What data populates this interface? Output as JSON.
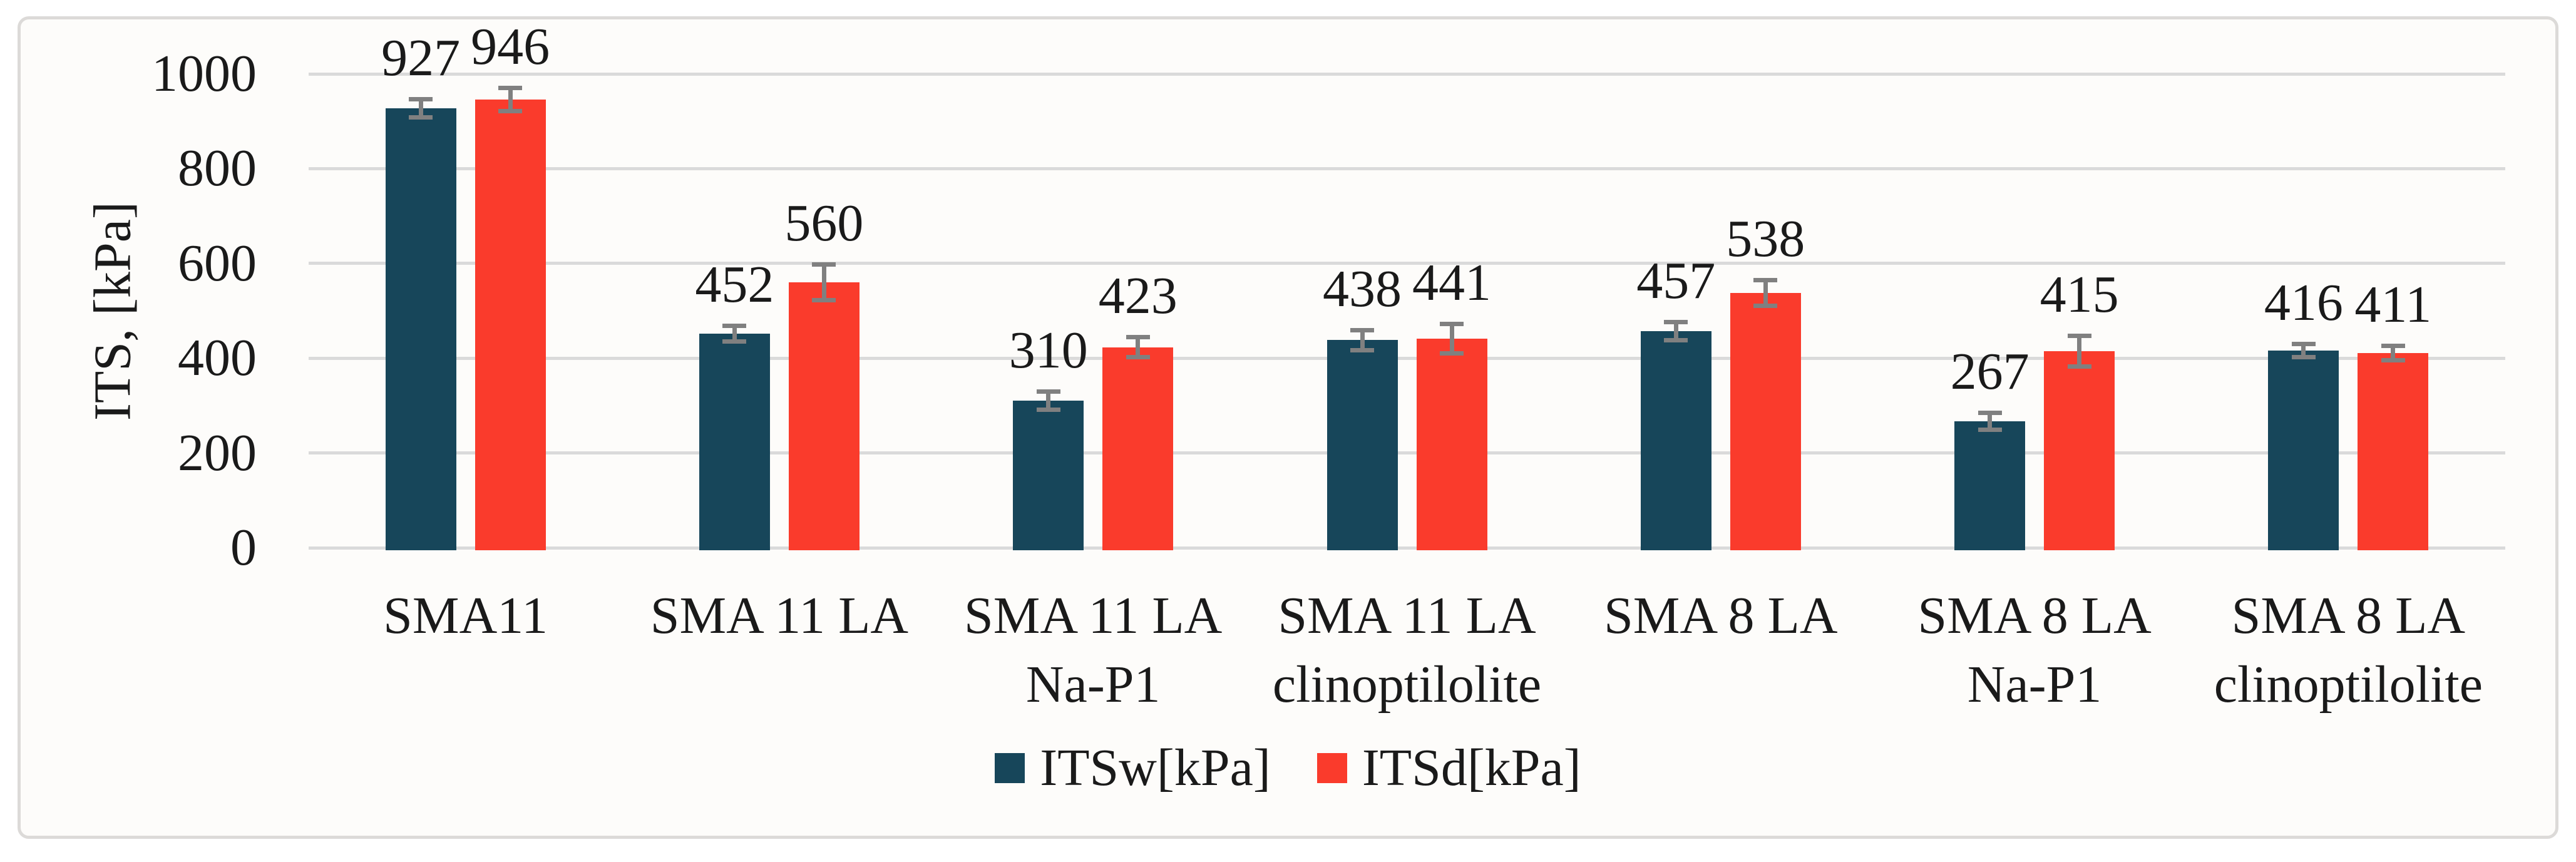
{
  "figure": {
    "panel_background": "#fdfcfa",
    "panel_border_color": "#dcdad8",
    "text_color": "#1a1a1a"
  },
  "chart_data": {
    "type": "bar",
    "title": "",
    "xlabel": "",
    "ylabel": "ITS, [kPa]",
    "ylim": [
      0,
      1000
    ],
    "yticks": [
      0,
      200,
      400,
      600,
      800,
      1000
    ],
    "grid": "horizontal gridlines on",
    "gridline_color": "#dadada",
    "error_bar_color": "#808080",
    "legend_position": "bottom center",
    "categories": [
      "SMA11",
      "SMA 11 LA",
      "SMA 11 LA Na-P1",
      "SMA 11 LA clinoptilolite",
      "SMA 8 LA",
      "SMA 8 LA Na-P1",
      "SMA 8 LA clinoptilolite"
    ],
    "category_label_lines": [
      [
        "SMA11"
      ],
      [
        "SMA 11 LA"
      ],
      [
        "SMA 11 LA",
        "Na-P1"
      ],
      [
        "SMA 11 LA",
        "clinoptilolite"
      ],
      [
        "SMA 8 LA"
      ],
      [
        "SMA 8 LA",
        "Na-P1"
      ],
      [
        "SMA 8 LA",
        "clinoptilolite"
      ]
    ],
    "series": [
      {
        "name": "ITSw[kPa]",
        "color": "#17465a",
        "values": [
          927,
          452,
          310,
          438,
          457,
          267,
          416
        ],
        "errors": [
          20,
          17,
          20,
          22,
          20,
          18,
          15
        ]
      },
      {
        "name": "ITSd[kPa]",
        "color": "#fa3b2c",
        "values": [
          946,
          560,
          423,
          441,
          538,
          415,
          411
        ],
        "errors": [
          25,
          38,
          22,
          32,
          28,
          33,
          16
        ]
      }
    ]
  }
}
